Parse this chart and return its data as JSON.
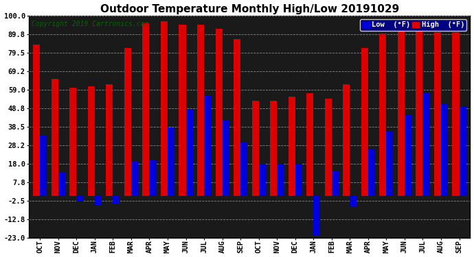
{
  "title": "Outdoor Temperature Monthly High/Low 20191029",
  "copyright": "Copyright 2019 Cartronics.com",
  "legend_low": "Low  (°F)",
  "legend_high": "High  (°F)",
  "months": [
    "OCT",
    "NOV",
    "DEC",
    "JAN",
    "FEB",
    "MAR",
    "APR",
    "MAY",
    "JUN",
    "JUL",
    "AUG",
    "SEP",
    "OCT",
    "NOV",
    "DEC",
    "JAN",
    "FEB",
    "MAR",
    "APR",
    "MAY",
    "JUN",
    "JUL",
    "AUG",
    "SEP"
  ],
  "high_values": [
    84,
    65,
    60,
    61,
    62,
    82,
    96,
    97,
    95,
    95,
    93,
    87,
    53,
    53,
    55,
    57,
    54,
    62,
    82,
    90,
    96,
    93,
    91,
    91
  ],
  "low_values": [
    34,
    13,
    -3,
    -5,
    -4,
    19,
    20,
    38,
    48,
    56,
    42,
    30,
    18,
    18,
    18,
    -22,
    14,
    -6,
    26,
    36,
    45,
    57,
    51,
    50
  ],
  "ylim": [
    -23,
    100
  ],
  "yticks": [
    -23.0,
    -12.8,
    -2.5,
    7.8,
    18.0,
    28.2,
    38.5,
    48.8,
    59.0,
    69.2,
    79.5,
    89.8,
    100.0
  ],
  "ytick_labels": [
    "-23.0",
    "-12.8",
    "-2.5",
    "7.8",
    "18.0",
    "28.2",
    "38.5",
    "48.8",
    "59.0",
    "69.2",
    "79.5",
    "89.8",
    "100.0"
  ],
  "bar_width": 0.38,
  "background_color": "#ffffff",
  "plot_bg_color": "#1a1a1a",
  "grid_color": "#888888",
  "low_color": "#0000dd",
  "high_color": "#dd0000",
  "title_fontsize": 11,
  "axis_fontsize": 7.5,
  "legend_fontsize": 7.5,
  "copyright_fontsize": 7
}
